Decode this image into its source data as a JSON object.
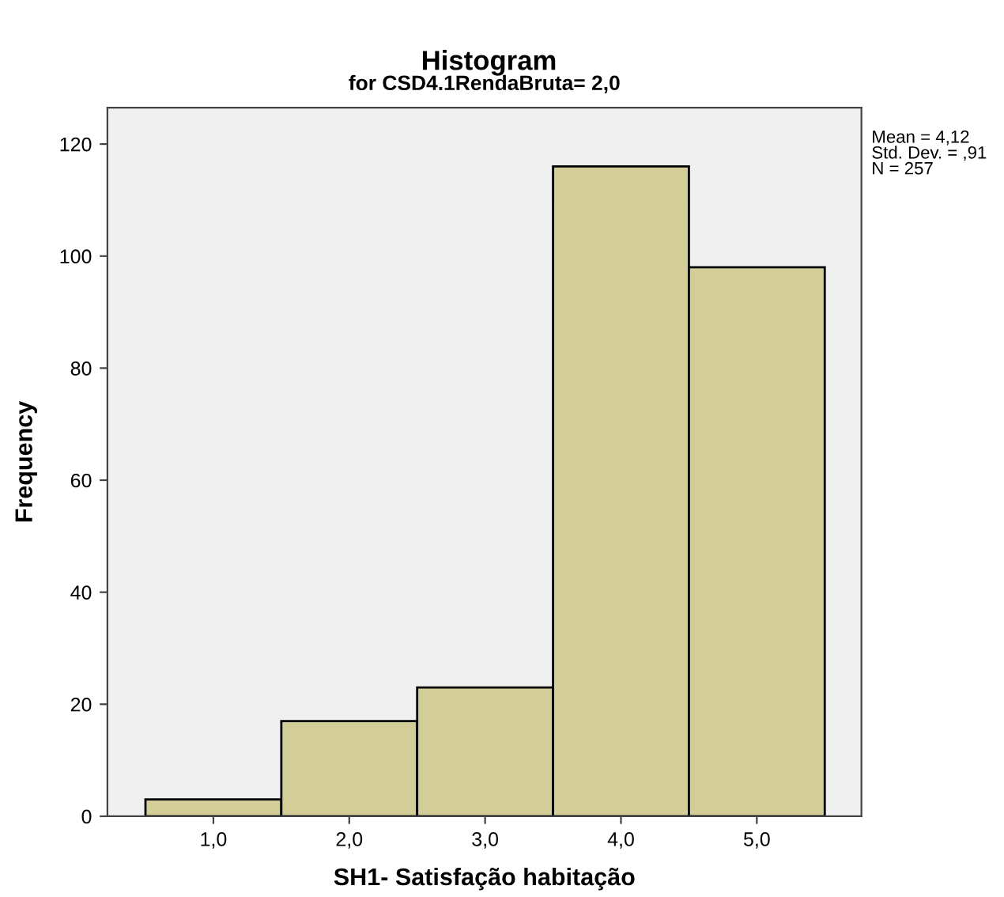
{
  "chart_data": {
    "type": "histogram",
    "title": "Histogram",
    "subtitle": "for CSD4.1RendaBruta= 2,0",
    "xlabel": "SH1- Satisfação habitação",
    "ylabel": "Frequency",
    "bins": [
      0.5,
      1.5,
      2.5,
      3.5,
      4.5,
      5.5
    ],
    "values": [
      3,
      17,
      23,
      116,
      98
    ],
    "color": "#d3ce98",
    "xlim": [
      0.22,
      5.77
    ],
    "ylim": [
      0,
      126.5
    ],
    "xticks": [
      {
        "value": 1,
        "label": "1,0"
      },
      {
        "value": 2,
        "label": "2,0"
      },
      {
        "value": 3,
        "label": "3,0"
      },
      {
        "value": 4,
        "label": "4,0"
      },
      {
        "value": 5,
        "label": "5,0"
      }
    ],
    "yticks": [
      0,
      20,
      40,
      60,
      80,
      100,
      120
    ],
    "grid": false,
    "annotations": [
      "Mean = 4,12\nStd. Dev. = ,91\nN = 257"
    ]
  }
}
